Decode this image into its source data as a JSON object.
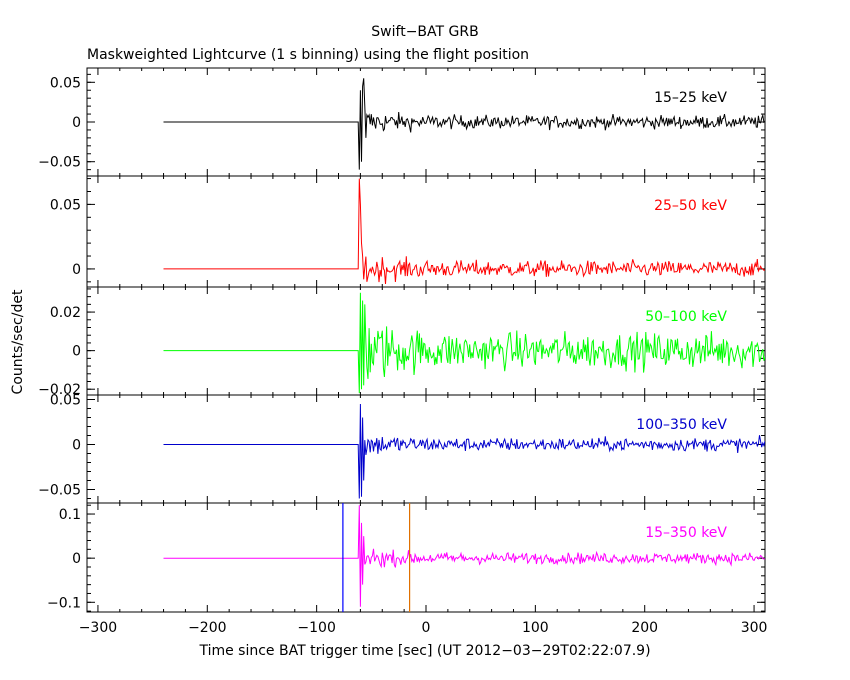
{
  "figure": {
    "title": "Swift−BAT GRB",
    "subtitle": "Maskweighted Lightcurve (1 s binning) using the flight position",
    "xlabel": "Time since BAT trigger time [sec] (UT 2012−03−29T02:22:07.9)",
    "ylabel": "Counts/sec/det"
  },
  "chart_data": {
    "type": "line",
    "x_range": [
      -310,
      310
    ],
    "x_ticks": [
      -300,
      -200,
      -100,
      0,
      100,
      200,
      300
    ],
    "x_tick_labels": [
      "−300",
      "−200",
      "−100",
      "0",
      "100",
      "200",
      "300"
    ],
    "markers": [
      {
        "x": -76,
        "color": "#0000ff"
      },
      {
        "x": -15,
        "color": "#e07000"
      }
    ],
    "panels": [
      {
        "band": "15–25 keV",
        "color": "#000000",
        "ylim": [
          -0.068,
          0.068
        ],
        "y_ticks": [
          0.05,
          0,
          -0.05
        ],
        "y_tick_labels": [
          "0.05",
          "0",
          "−0.05"
        ],
        "flat_from": -240,
        "burst_start": -62,
        "spikes": [
          [
            -61,
            -0.06
          ],
          [
            -60,
            0.04
          ],
          [
            -59,
            -0.05
          ],
          [
            -58,
            0.045
          ],
          [
            -57,
            0.055
          ],
          [
            -56,
            0.02
          ],
          [
            -55,
            -0.02
          ]
        ],
        "noise": 0.008
      },
      {
        "band": "25–50 keV",
        "color": "#ff0000",
        "ylim": [
          -0.014,
          0.072
        ],
        "y_ticks": [
          0.05,
          0
        ],
        "y_tick_labels": [
          "0.05",
          "0"
        ],
        "flat_from": -240,
        "burst_start": -62,
        "spikes": [
          [
            -61,
            0.07
          ],
          [
            -60,
            0.05
          ],
          [
            -59,
            0.02
          ],
          [
            -58,
            0.01
          ],
          [
            -57,
            -0.008
          ]
        ],
        "noise": 0.006
      },
      {
        "band": "50–100 keV",
        "color": "#00ff00",
        "ylim": [
          -0.023,
          0.033
        ],
        "y_ticks": [
          0.02,
          0,
          -0.02
        ],
        "y_tick_labels": [
          "0.02",
          "0",
          "−0.02"
        ],
        "flat_from": -240,
        "burst_start": -62,
        "spikes": [
          [
            -61,
            -0.022
          ],
          [
            -60,
            0.03
          ],
          [
            -59,
            -0.02
          ],
          [
            -58,
            0.026
          ],
          [
            -57,
            -0.018
          ],
          [
            -56,
            0.024
          ]
        ],
        "noise": 0.009
      },
      {
        "band": "100–350 keV",
        "color": "#0000cc",
        "ylim": [
          -0.065,
          0.055
        ],
        "y_ticks": [
          0.05,
          0,
          -0.05
        ],
        "y_tick_labels": [
          "0.05",
          "0",
          "−0.05"
        ],
        "flat_from": -240,
        "burst_start": -62,
        "spikes": [
          [
            -61,
            -0.06
          ],
          [
            -60,
            0.045
          ],
          [
            -59,
            -0.058
          ],
          [
            -58,
            0.03
          ],
          [
            -57,
            -0.04
          ]
        ],
        "noise": 0.007
      },
      {
        "band": "15–350 keV",
        "color": "#ff00ff",
        "ylim": [
          -0.122,
          0.125
        ],
        "y_ticks": [
          0.1,
          0,
          -0.1
        ],
        "y_tick_labels": [
          "0.1",
          "0",
          "−0.1"
        ],
        "flat_from": -240,
        "burst_start": -62,
        "spikes": [
          [
            -61,
            0.12
          ],
          [
            -60,
            -0.11
          ],
          [
            -59,
            0.08
          ],
          [
            -58,
            -0.06
          ],
          [
            -57,
            0.05
          ]
        ],
        "noise": 0.012
      }
    ]
  }
}
